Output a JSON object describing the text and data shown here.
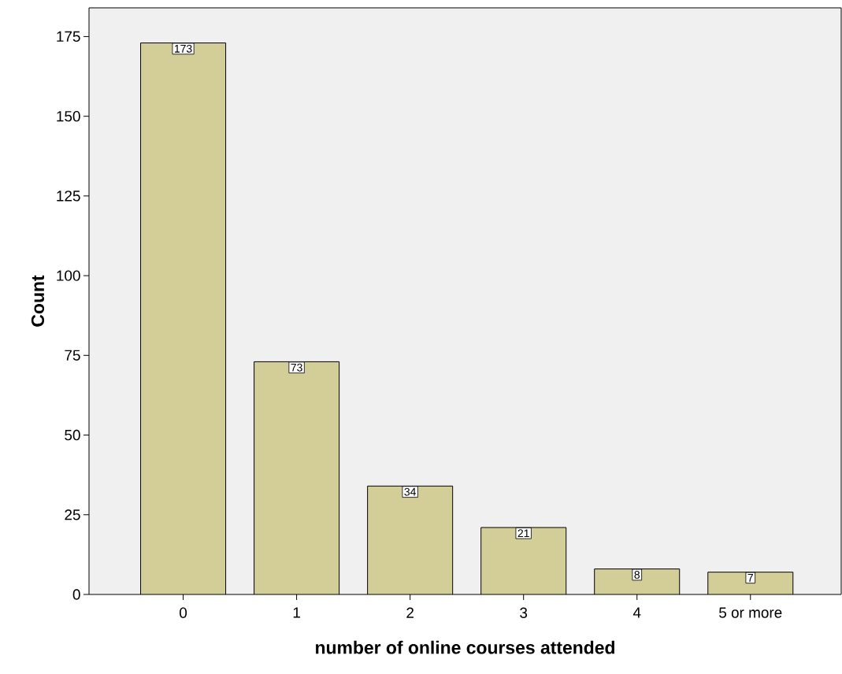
{
  "chart_data": {
    "type": "bar",
    "xlabel": "number of online courses attended",
    "ylabel": "Count",
    "categories": [
      "0",
      "1",
      "2",
      "3",
      "4",
      "5 or more"
    ],
    "values": [
      173,
      73,
      34,
      21,
      8,
      7
    ],
    "color": "#d3ce98",
    "ylim": [
      0,
      184
    ],
    "yticks": [
      0,
      25,
      50,
      75,
      100,
      125,
      150,
      175
    ],
    "data_labels": true,
    "grid": false
  }
}
